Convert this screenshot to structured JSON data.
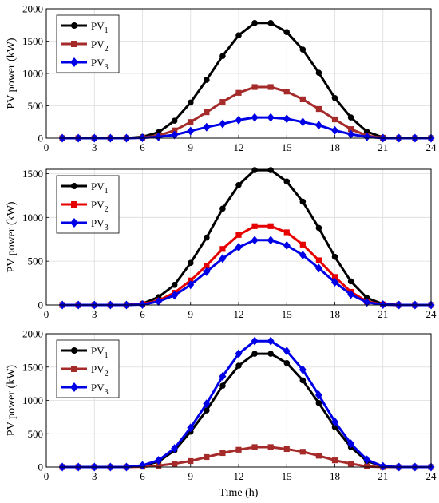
{
  "chart_data": [
    {
      "type": "line",
      "ylabel": "PV power (kW)",
      "xlabel": "",
      "xlim": [
        0,
        24
      ],
      "ylim": [
        0,
        2000
      ],
      "xticks": [
        0,
        3,
        6,
        9,
        12,
        15,
        18,
        21,
        24
      ],
      "yticks": [
        0,
        500,
        1000,
        1500,
        2000
      ],
      "grid": true,
      "legend": "top-left",
      "x": [
        1,
        2,
        3,
        4,
        5,
        6,
        7,
        8,
        9,
        10,
        11,
        12,
        13,
        14,
        15,
        16,
        17,
        18,
        19,
        20,
        21,
        22,
        23,
        24
      ],
      "series": [
        {
          "name": "PV",
          "sub": "1",
          "color": "#000000",
          "marker": "circle",
          "values": [
            0,
            0,
            0,
            0,
            0,
            20,
            90,
            270,
            550,
            900,
            1270,
            1590,
            1780,
            1780,
            1640,
            1370,
            1010,
            620,
            320,
            100,
            10,
            0,
            0,
            0
          ]
        },
        {
          "name": "PV",
          "sub": "2",
          "color": "#a52a2a",
          "marker": "square",
          "values": [
            0,
            0,
            0,
            0,
            0,
            10,
            40,
            120,
            250,
            400,
            560,
            700,
            790,
            790,
            720,
            600,
            450,
            290,
            140,
            40,
            5,
            0,
            0,
            0
          ]
        },
        {
          "name": "PV",
          "sub": "3",
          "color": "#0000e6",
          "marker": "diamond",
          "values": [
            0,
            0,
            0,
            0,
            0,
            5,
            20,
            50,
            110,
            170,
            220,
            280,
            320,
            320,
            300,
            250,
            200,
            120,
            60,
            20,
            0,
            0,
            0,
            0
          ]
        }
      ]
    },
    {
      "type": "line",
      "ylabel": "PV power (kW)",
      "xlabel": "",
      "xlim": [
        0,
        24
      ],
      "ylim": [
        0,
        1550
      ],
      "xticks": [
        0,
        3,
        6,
        9,
        12,
        15,
        18,
        21,
        24
      ],
      "yticks": [
        0,
        500,
        1000,
        1500
      ],
      "grid": true,
      "legend": "top-left",
      "x": [
        1,
        2,
        3,
        4,
        5,
        6,
        7,
        8,
        9,
        10,
        11,
        12,
        13,
        14,
        15,
        16,
        17,
        18,
        19,
        20,
        21,
        22,
        23,
        24
      ],
      "series": [
        {
          "name": "PV",
          "sub": "1",
          "color": "#000000",
          "marker": "circle",
          "values": [
            0,
            0,
            0,
            0,
            0,
            15,
            90,
            230,
            480,
            770,
            1100,
            1370,
            1540,
            1540,
            1410,
            1180,
            880,
            550,
            270,
            80,
            10,
            0,
            0,
            0
          ]
        },
        {
          "name": "PV",
          "sub": "2",
          "color": "#e60000",
          "marker": "square",
          "values": [
            0,
            0,
            0,
            0,
            0,
            10,
            50,
            140,
            280,
            450,
            640,
            800,
            900,
            900,
            830,
            690,
            510,
            320,
            150,
            40,
            5,
            0,
            0,
            0
          ]
        },
        {
          "name": "PV",
          "sub": "3",
          "color": "#0000e6",
          "marker": "diamond",
          "values": [
            0,
            0,
            0,
            0,
            0,
            5,
            40,
            110,
            230,
            380,
            530,
            660,
            740,
            740,
            680,
            570,
            420,
            260,
            120,
            30,
            5,
            0,
            0,
            0
          ]
        }
      ]
    },
    {
      "type": "line",
      "ylabel": "PV power (kW)",
      "xlabel": "Time (h)",
      "xlim": [
        0,
        24
      ],
      "ylim": [
        0,
        2000
      ],
      "xticks": [
        0,
        3,
        6,
        9,
        12,
        15,
        18,
        21,
        24
      ],
      "yticks": [
        0,
        500,
        1000,
        1500,
        2000
      ],
      "grid": true,
      "legend": "top-left",
      "x": [
        1,
        2,
        3,
        4,
        5,
        6,
        7,
        8,
        9,
        10,
        11,
        12,
        13,
        14,
        15,
        16,
        17,
        18,
        19,
        20,
        21,
        22,
        23,
        24
      ],
      "series": [
        {
          "name": "PV",
          "sub": "1",
          "color": "#000000",
          "marker": "circle",
          "values": [
            0,
            0,
            0,
            0,
            0,
            20,
            80,
            250,
            530,
            850,
            1220,
            1520,
            1700,
            1700,
            1560,
            1300,
            960,
            600,
            300,
            90,
            10,
            0,
            0,
            0
          ]
        },
        {
          "name": "PV",
          "sub": "2",
          "color": "#a52a2a",
          "marker": "square",
          "values": [
            0,
            0,
            0,
            0,
            0,
            5,
            20,
            50,
            90,
            150,
            210,
            260,
            300,
            300,
            270,
            230,
            170,
            100,
            50,
            10,
            0,
            0,
            0,
            0
          ]
        },
        {
          "name": "PV",
          "sub": "3",
          "color": "#0000e6",
          "marker": "diamond",
          "values": [
            0,
            0,
            0,
            0,
            0,
            25,
            100,
            280,
            590,
            950,
            1360,
            1700,
            1890,
            1890,
            1740,
            1460,
            1080,
            680,
            350,
            110,
            10,
            0,
            0,
            0
          ]
        }
      ]
    }
  ]
}
